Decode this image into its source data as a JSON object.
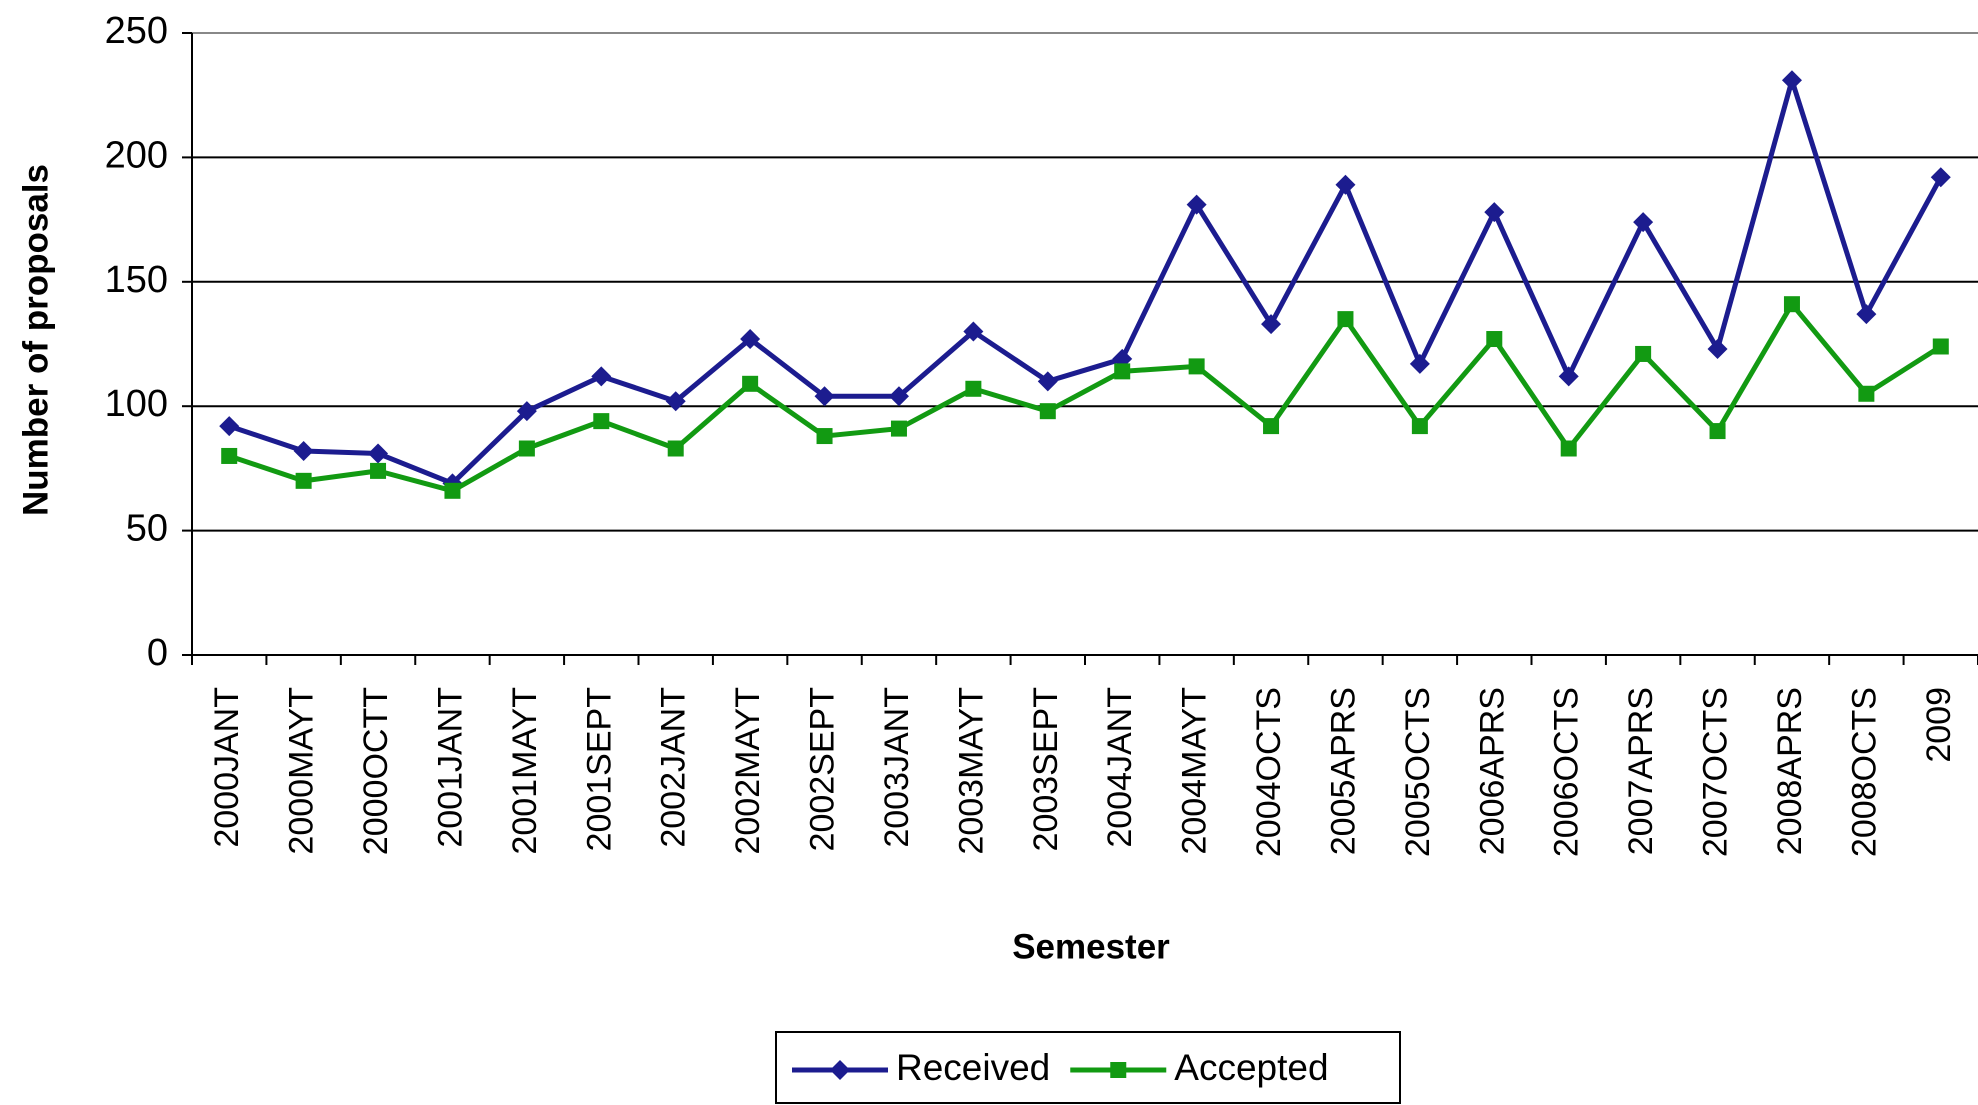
{
  "chart_data": {
    "type": "line",
    "xlabel": "Semester",
    "ylabel": "Number of proposals",
    "categories": [
      "2000JANT",
      "2000MAYT",
      "2000OCTT",
      "2001JANT",
      "2001MAYT",
      "2001SEPT",
      "2002JANT",
      "2002MAYT",
      "2002SEPT",
      "2003JANT",
      "2003MAYT",
      "2003SEPT",
      "2004JANT",
      "2004MAYT",
      "2004OCTS",
      "2005APRS",
      "2005OCTS",
      "2006APRS",
      "2006OCTS",
      "2007APRS",
      "2007OCTS",
      "2008APRS",
      "2008OCTS",
      "2009"
    ],
    "series": [
      {
        "name": "Received",
        "color": "#1c1c8f",
        "marker": "diamond",
        "values": [
          92,
          82,
          81,
          69,
          98,
          112,
          102,
          127,
          104,
          104,
          130,
          110,
          119,
          181,
          133,
          189,
          117,
          178,
          112,
          174,
          123,
          231,
          137,
          192
        ]
      },
      {
        "name": "Accepted",
        "color": "#129a12",
        "marker": "square",
        "values": [
          80,
          70,
          74,
          66,
          83,
          94,
          83,
          109,
          88,
          91,
          107,
          98,
          114,
          116,
          92,
          135,
          92,
          127,
          83,
          121,
          90,
          141,
          105,
          124
        ]
      }
    ],
    "ylim": [
      0,
      250
    ],
    "yticks": [
      0,
      50,
      100,
      150,
      200,
      250
    ],
    "grid": true,
    "legend": "bottom"
  }
}
